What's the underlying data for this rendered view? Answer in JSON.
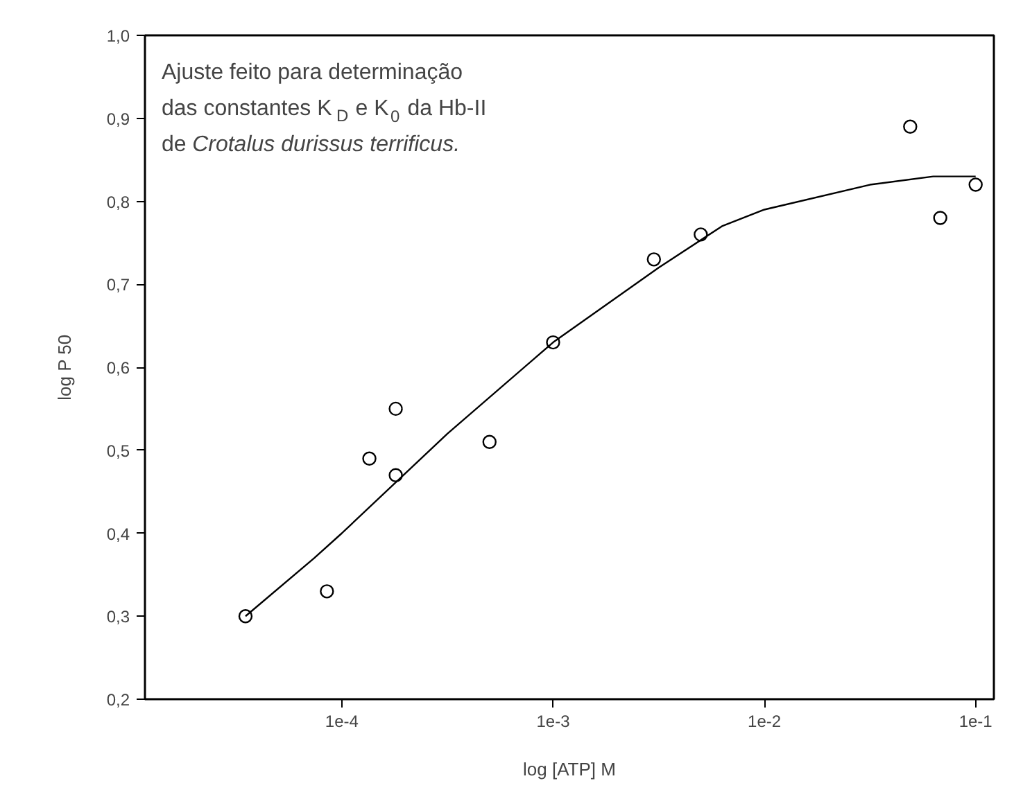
{
  "chart_data": {
    "type": "scatter",
    "xlabel": "log [ATP] M",
    "ylabel": "log P 50",
    "annotations": [
      "Ajuste feito para determinação",
      "das constantes K$_{D}$ e K$_{0}$ da Hb-II",
      "de Crotalus durissus terrificus."
    ],
    "log": "x",
    "grid": false,
    "marker": "circle",
    "xlim": [
      1.17e-05,
      0.122
    ],
    "ylim": [
      0.2,
      1.0
    ],
    "xticks": [
      {
        "value": 0.0001,
        "label": "1e-4"
      },
      {
        "value": 0.001,
        "label": "1e-3"
      },
      {
        "value": 0.01,
        "label": "1e-2"
      },
      {
        "value": 0.1,
        "label": "1e-1"
      }
    ],
    "yticks": [
      {
        "value": 0.2,
        "label": "0,2"
      },
      {
        "value": 0.3,
        "label": "0,3"
      },
      {
        "value": 0.4,
        "label": "0,4"
      },
      {
        "value": 0.5,
        "label": "0,5"
      },
      {
        "value": 0.6,
        "label": "0,6"
      },
      {
        "value": 0.7,
        "label": "0,7"
      },
      {
        "value": 0.8,
        "label": "0,8"
      },
      {
        "value": 0.9,
        "label": "0,9"
      },
      {
        "value": 1.0,
        "label": "1,0"
      }
    ],
    "series": [
      {
        "color": "#000000",
        "x": [
          3.5e-05,
          8.5e-05,
          0.000135,
          0.00018,
          0.00018,
          0.0005,
          0.001,
          0.003,
          0.005,
          0.049,
          0.068,
          0.1
        ],
        "values": [
          0.3,
          0.33,
          0.49,
          0.55,
          0.47,
          0.51,
          0.63,
          0.73,
          0.76,
          0.89,
          0.78,
          0.82
        ]
      },
      {
        "type": "line",
        "marker": "none",
        "color": "#000000",
        "x": [
          3.5e-05,
          7.4e-05,
          0.0001,
          0.000316,
          0.001,
          0.00316,
          0.0063,
          0.01,
          0.0316,
          0.063,
          0.1
        ],
        "values": [
          0.3,
          0.37,
          0.4,
          0.52,
          0.63,
          0.72,
          0.77,
          0.79,
          0.82,
          0.83,
          0.83
        ]
      }
    ]
  }
}
